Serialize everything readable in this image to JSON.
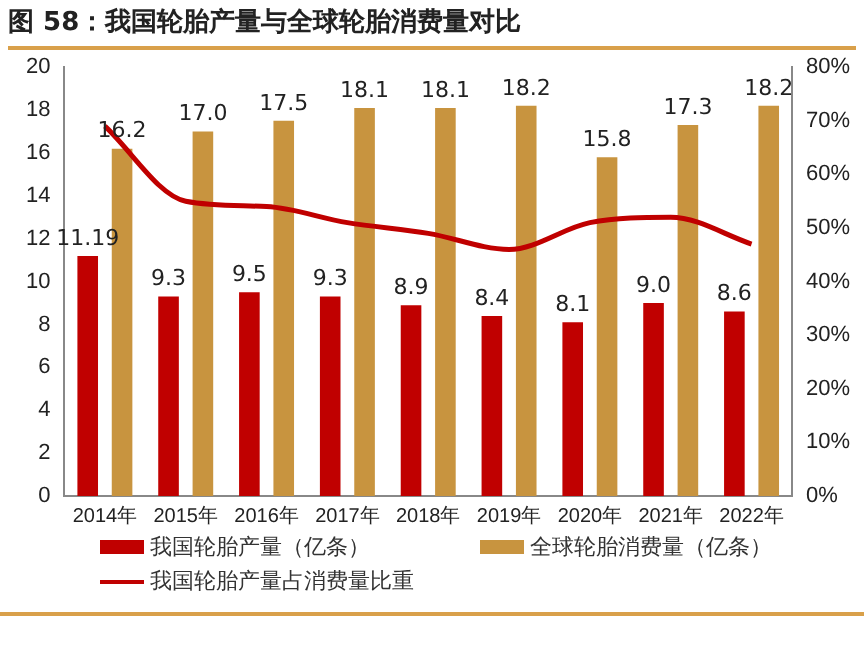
{
  "chart_data": {
    "type": "bar",
    "title": "图 58：我国轮胎产量与全球轮胎消费量对比",
    "categories": [
      "2014年",
      "2015年",
      "2016年",
      "2017年",
      "2018年",
      "2019年",
      "2020年",
      "2021年",
      "2022年"
    ],
    "series": [
      {
        "name": "我国轮胎产量（亿条）",
        "color": "#c00000",
        "values": [
          11.19,
          9.3,
          9.5,
          9.3,
          8.9,
          8.4,
          8.1,
          9.0,
          8.6
        ],
        "value_labels": [
          "11.19",
          "9.3",
          "9.5",
          "9.3",
          "8.9",
          "8.4",
          "8.1",
          "9.0",
          "8.6"
        ]
      },
      {
        "name": "全球轮胎消费量（亿条）",
        "color": "#c8943f",
        "values": [
          16.2,
          17.0,
          17.5,
          18.1,
          18.1,
          18.2,
          15.8,
          17.3,
          18.2
        ],
        "value_labels": [
          "16.2",
          "17.0",
          "17.5",
          "18.1",
          "18.1",
          "18.2",
          "15.8",
          "17.3",
          "18.2"
        ]
      },
      {
        "name": "我国轮胎产量占消费量比重",
        "type": "line",
        "axis": "y2",
        "color": "#c00000",
        "values": [
          69,
          55,
          54,
          51,
          49,
          46,
          51,
          52,
          47
        ]
      }
    ],
    "ylim": [
      0,
      20
    ],
    "yticks": [
      0,
      2,
      4,
      6,
      8,
      10,
      12,
      14,
      16,
      18,
      20
    ],
    "y2lim": [
      0,
      80
    ],
    "y2ticks": [
      {
        "value": 0,
        "label": "0%"
      },
      {
        "value": 10,
        "label": "10%"
      },
      {
        "value": 20,
        "label": "20%"
      },
      {
        "value": 30,
        "label": "30%"
      },
      {
        "value": 40,
        "label": "40%"
      },
      {
        "value": 50,
        "label": "50%"
      },
      {
        "value": 60,
        "label": "60%"
      },
      {
        "value": 70,
        "label": "70%"
      },
      {
        "value": 80,
        "label": "80%"
      }
    ],
    "legend": "bottom",
    "grid": false,
    "marker": "none"
  }
}
